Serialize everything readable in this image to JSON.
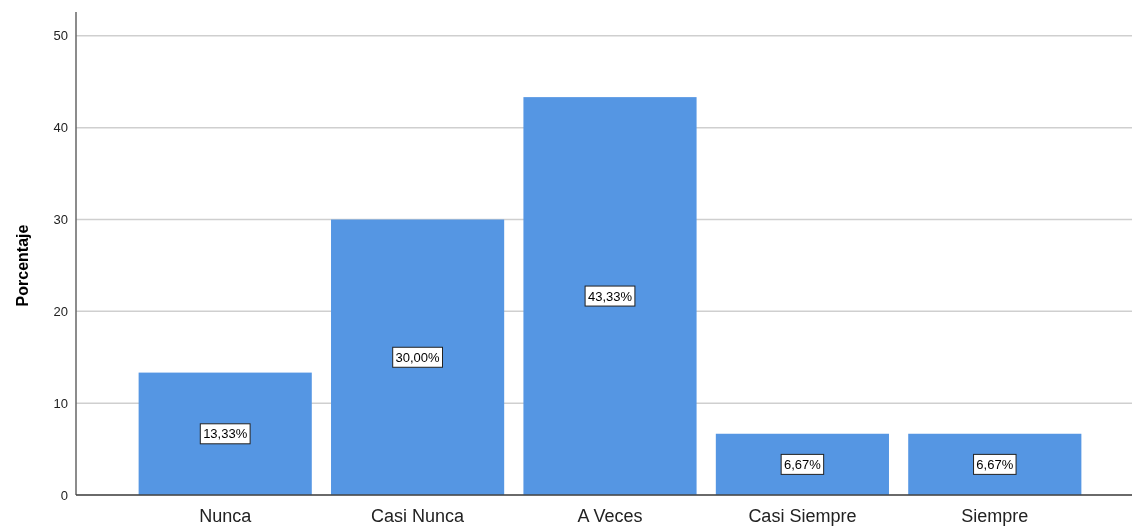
{
  "chart_data": {
    "type": "bar",
    "ylabel": "Porcentaje",
    "categories": [
      "Nunca",
      "Casi Nunca",
      "A Veces",
      "Casi Siempre",
      "Siempre"
    ],
    "values": [
      13.33,
      30.0,
      43.33,
      6.67,
      6.67
    ],
    "value_labels": [
      "13,33%",
      "30,00%",
      "43,33%",
      "6,67%",
      "6,67%"
    ],
    "color": "#5596e3",
    "ylim": [
      0,
      52.6
    ],
    "yticks": [
      0,
      10,
      20,
      30,
      40,
      50
    ],
    "grid": "y"
  }
}
